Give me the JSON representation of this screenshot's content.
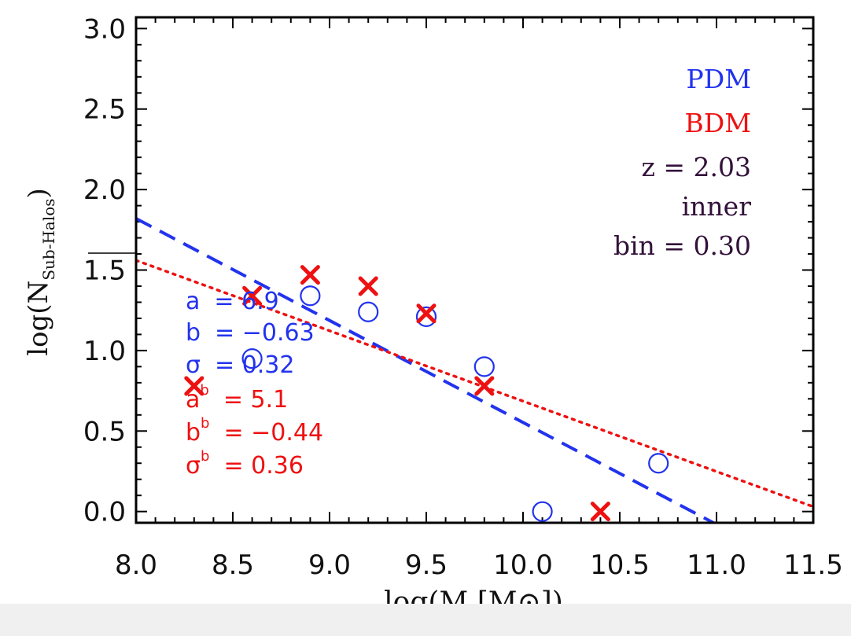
{
  "chart_data": {
    "type": "scatter",
    "xlabel": "log(M [M⊙])",
    "ylabel": "log(N",
    "ylabel_sub": "Sub-Halos",
    "ylabel_close": ")",
    "xlim": [
      8.0,
      11.5
    ],
    "ylim": [
      -0.07,
      3.07
    ],
    "xticks": [
      "8.0",
      "8.5",
      "9.0",
      "9.5",
      "10.0",
      "10.5",
      "11.0",
      "11.5"
    ],
    "yticks": [
      "0.0",
      "0.5",
      "1.0",
      "1.5",
      "2.0",
      "2.5",
      "3.0"
    ],
    "colors": {
      "pdm": "#2233ee",
      "bdm": "#ee1111",
      "info": "#33113a"
    },
    "series": [
      {
        "name": "PDM",
        "marker": "circle",
        "points": [
          [
            8.6,
            0.95
          ],
          [
            8.9,
            1.34
          ],
          [
            9.2,
            1.24
          ],
          [
            9.5,
            1.21
          ],
          [
            9.8,
            0.9
          ],
          [
            10.1,
            0.0
          ],
          [
            10.7,
            0.3
          ]
        ],
        "fit": {
          "style": "dashed",
          "x": [
            8.0,
            11.0
          ],
          "y": [
            1.82,
            -0.08
          ]
        }
      },
      {
        "name": "BDM",
        "marker": "x",
        "points": [
          [
            8.3,
            0.78
          ],
          [
            8.6,
            1.34
          ],
          [
            8.9,
            1.47
          ],
          [
            9.2,
            1.4
          ],
          [
            9.5,
            1.23
          ],
          [
            9.8,
            0.78
          ],
          [
            10.4,
            0.0
          ]
        ],
        "fit": {
          "style": "dotted",
          "x": [
            8.0,
            11.5
          ],
          "y": [
            1.56,
            0.03
          ]
        }
      }
    ],
    "legend": [
      "PDM",
      "BDM"
    ],
    "info_lines": [
      "z = 2.03",
      "inner",
      "bin = 0.30"
    ],
    "pdm_fit_params": [
      {
        "label": "a",
        "value": "= 6.9"
      },
      {
        "label": "b",
        "value": "= −0.63"
      },
      {
        "label": "σ",
        "value": "= 0.32"
      }
    ],
    "bdm_fit_params": [
      {
        "label": "a",
        "sub": "b",
        "value": "= 5.1"
      },
      {
        "label": "b",
        "sub": "b",
        "value": "= −0.44"
      },
      {
        "label": "σ",
        "sub": "b",
        "value": "= 0.36"
      }
    ]
  }
}
